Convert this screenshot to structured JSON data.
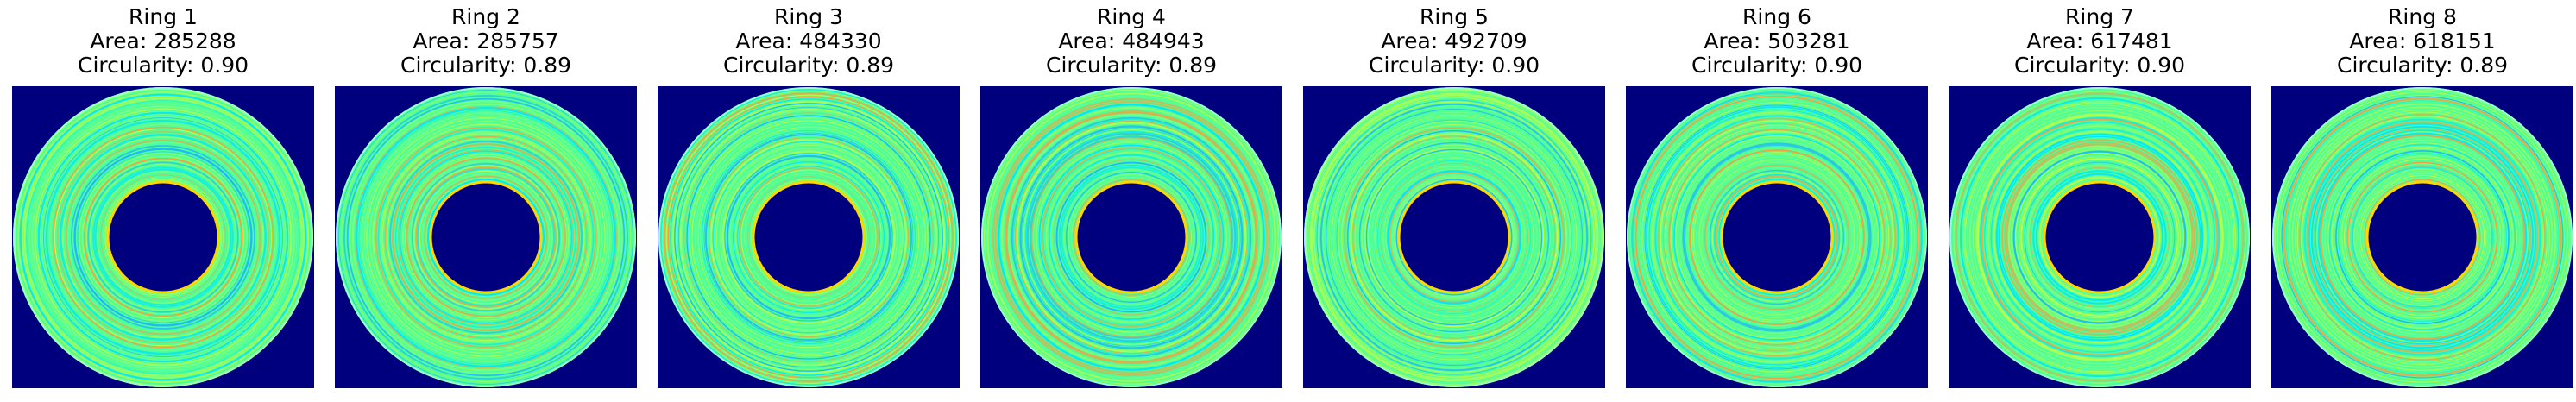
{
  "panels": [
    {
      "title": "Ring 1",
      "area": "Area: 285288",
      "circularity": "Circularity: 0.90"
    },
    {
      "title": "Ring 2",
      "area": "Area: 285757",
      "circularity": "Circularity: 0.89"
    },
    {
      "title": "Ring 3",
      "area": "Area: 484330",
      "circularity": "Circularity: 0.89"
    },
    {
      "title": "Ring 4",
      "area": "Area: 484943",
      "circularity": "Circularity: 0.89"
    },
    {
      "title": "Ring 5",
      "area": "Area: 492709",
      "circularity": "Circularity: 0.90"
    },
    {
      "title": "Ring 6",
      "area": "Area: 503281",
      "circularity": "Circularity: 0.90"
    },
    {
      "title": "Ring 7",
      "area": "Area: 617481",
      "circularity": "Circularity: 0.90"
    },
    {
      "title": "Ring 8",
      "area": "Area: 618151",
      "circularity": "Circularity: 0.89"
    }
  ],
  "colors": {
    "background": "#00007f",
    "ring_base": "#4cff9a",
    "ring_stripes": [
      "#00e5ff",
      "#7fff7f",
      "#b0ff50",
      "#ff9c3c",
      "#1fb3ff",
      "#c8ff40"
    ],
    "edge": "#ffd700"
  }
}
